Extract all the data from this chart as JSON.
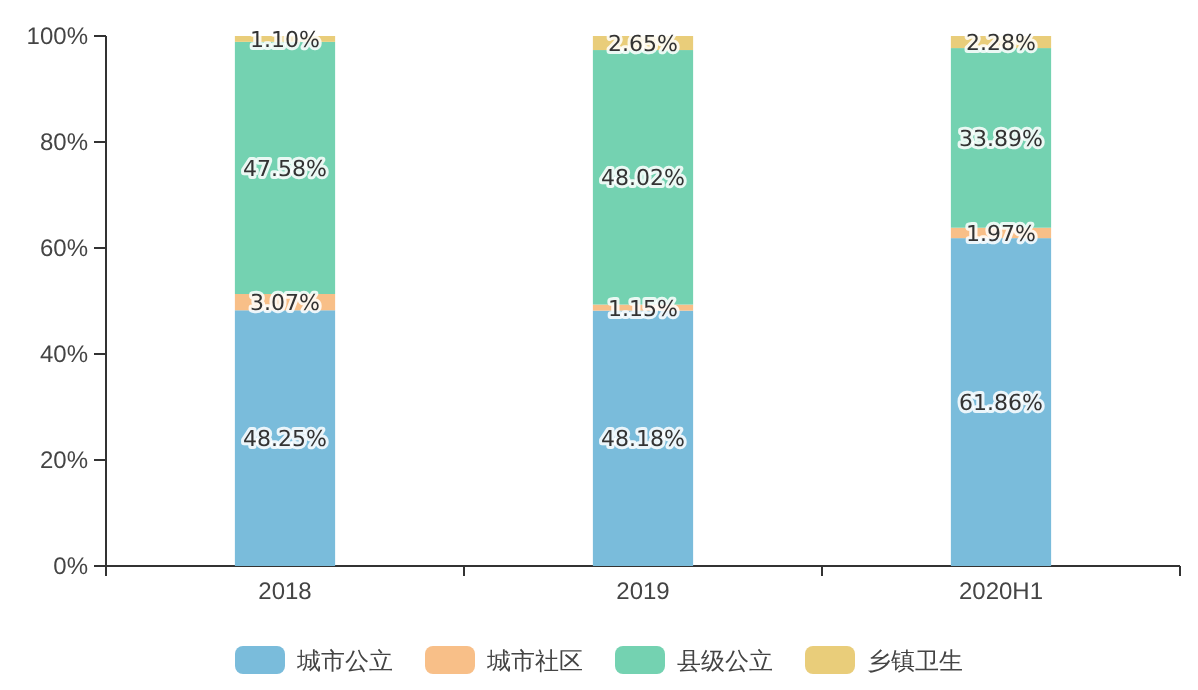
{
  "chart_data": {
    "type": "bar",
    "stacked": true,
    "categories": [
      "2018",
      "2019",
      "2020H1"
    ],
    "series": [
      {
        "name": "城市公立",
        "color": "#7abcdb",
        "values": [
          48.25,
          48.18,
          61.86
        ],
        "value_labels": [
          "48.25%",
          "48.18%",
          "61.86%"
        ]
      },
      {
        "name": "城市社区",
        "color": "#f8bf88",
        "values": [
          3.07,
          1.15,
          1.97
        ],
        "value_labels": [
          "3.07%",
          "1.15%",
          "1.97%"
        ]
      },
      {
        "name": "县级公立",
        "color": "#74d2b1",
        "values": [
          47.58,
          48.02,
          33.89
        ],
        "value_labels": [
          "47.58%",
          "48.02%",
          "33.89%"
        ]
      },
      {
        "name": "乡镇卫生",
        "color": "#e9cd7a",
        "values": [
          1.1,
          2.65,
          2.28
        ],
        "value_labels": [
          "1.10%",
          "2.65%",
          "2.28%"
        ]
      }
    ],
    "ylim": [
      0,
      100
    ],
    "yticks": [
      {
        "value": 0,
        "label": "0%"
      },
      {
        "value": 20,
        "label": "20%"
      },
      {
        "value": 40,
        "label": "40%"
      },
      {
        "value": 60,
        "label": "60%"
      },
      {
        "value": 80,
        "label": "80%"
      },
      {
        "value": 100,
        "label": "100%"
      }
    ],
    "legend": "bottom",
    "grid": false
  }
}
